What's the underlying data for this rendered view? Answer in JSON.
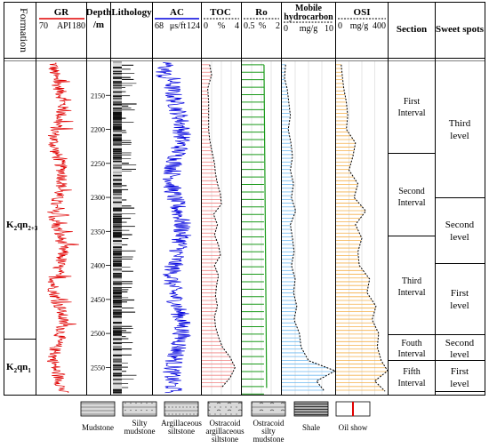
{
  "headers": {
    "formation": "Formation",
    "gr": {
      "title": "GR",
      "min": "70",
      "unit": "API",
      "max": "180",
      "color": "#e00000"
    },
    "depth": {
      "title": "Depth",
      "unit": "/m"
    },
    "lithology": "Lithology",
    "ac": {
      "title": "AC",
      "min": "68",
      "unit": "μs/ft",
      "max": "124",
      "color": "#0000dd"
    },
    "toc": {
      "title": "TOC",
      "min": "0",
      "unit": "%",
      "max": "4"
    },
    "ro": {
      "title": "Ro",
      "min": "0.5",
      "unit": "%",
      "max": "2"
    },
    "mobile": {
      "title1": "Mobile",
      "title2": "hydrocarbon",
      "min": "0",
      "unit": "mg/g",
      "max": "10"
    },
    "osi": {
      "title": "OSI",
      "min": "0",
      "unit": "mg/g",
      "max": "400"
    },
    "section": "Section",
    "sweet": "Sweet spots"
  },
  "depth_ticks": [
    "2150",
    "2200",
    "2250",
    "2300",
    "2350",
    "2400",
    "2450",
    "2500",
    "2550"
  ],
  "formations": {
    "upper": {
      "label": "K",
      "sub": "2",
      "rest": "qn",
      "sub2": "2+3"
    },
    "lower": {
      "label": "K",
      "sub": "2",
      "rest": "qn",
      "sub2": "1"
    }
  },
  "sections": [
    {
      "line1": "First",
      "line2": "Interval"
    },
    {
      "line1": "Second",
      "line2": "Interval"
    },
    {
      "line1": "Third",
      "line2": "Interval"
    },
    {
      "line1": "Fouth",
      "line2": "Interval"
    },
    {
      "line1": "Fifth",
      "line2": "Interval"
    }
  ],
  "sweet_spots": [
    {
      "line1": "Third",
      "line2": "level"
    },
    {
      "line1": "Second",
      "line2": "level"
    },
    {
      "line1": "First",
      "line2": "level"
    },
    {
      "line1": "Second",
      "line2": "level"
    },
    {
      "line1": "First",
      "line2": "level"
    }
  ],
  "legend": [
    {
      "label1": "Mudstone",
      "label2": "",
      "label3": "",
      "pattern": "mudstone"
    },
    {
      "label1": "Silty",
      "label2": "mudstone",
      "label3": "",
      "pattern": "silty"
    },
    {
      "label1": "Argillaceous",
      "label2": "siltstone",
      "label3": "",
      "pattern": "argsilt"
    },
    {
      "label1": "Ostracoid",
      "label2": "argillaceous",
      "label3": "siltstone",
      "pattern": "ostarg"
    },
    {
      "label1": "Ostracoid",
      "label2": "silty",
      "label3": "mudstone",
      "pattern": "ostsilty"
    },
    {
      "label1": "Shale",
      "label2": "",
      "label3": "",
      "pattern": "shale"
    },
    {
      "label1": "Oil show",
      "label2": "",
      "label3": "",
      "pattern": "oil"
    }
  ],
  "chart_data": {
    "type": "line",
    "depth_range": [
      2100,
      2590
    ],
    "toc": {
      "depth": [
        2105,
        2120,
        2140,
        2160,
        2180,
        2200,
        2215,
        2230,
        2250,
        2265,
        2280,
        2295,
        2310,
        2325,
        2340,
        2355,
        2370,
        2385,
        2400,
        2415,
        2430,
        2445,
        2460,
        2475,
        2490,
        2505,
        2520,
        2535,
        2550,
        2565,
        2580
      ],
      "values": [
        0.8,
        1.0,
        0.6,
        0.7,
        0.7,
        0.7,
        0.8,
        1.0,
        1.3,
        1.4,
        1.6,
        1.9,
        2.0,
        1.2,
        1.6,
        1.3,
        1.7,
        1.9,
        1.3,
        1.7,
        1.5,
        1.4,
        1.6,
        1.3,
        1.4,
        1.7,
        2.1,
        2.9,
        3.4,
        2.9,
        2.0
      ]
    },
    "ro": {
      "depth": [
        2105,
        2580
      ],
      "values": [
        1.35,
        1.45
      ]
    },
    "mobile": {
      "depth": [
        2105,
        2125,
        2140,
        2160,
        2180,
        2200,
        2220,
        2240,
        2260,
        2280,
        2300,
        2320,
        2340,
        2360,
        2380,
        2400,
        2420,
        2440,
        2460,
        2480,
        2500,
        2520,
        2540,
        2555,
        2570,
        2585
      ],
      "values": [
        0.7,
        0.5,
        1.0,
        1.3,
        1.6,
        1.2,
        1.7,
        2.0,
        1.6,
        2.2,
        1.8,
        2.6,
        1.6,
        2.0,
        2.3,
        1.8,
        2.5,
        2.2,
        2.8,
        2.3,
        3.3,
        3.6,
        5.0,
        10,
        6.5,
        8.0
      ]
    },
    "osi": {
      "depth": [
        2105,
        2125,
        2140,
        2160,
        2180,
        2200,
        2220,
        2240,
        2260,
        2280,
        2300,
        2320,
        2340,
        2360,
        2380,
        2400,
        2420,
        2440,
        2460,
        2480,
        2500,
        2520,
        2540,
        2555,
        2570,
        2585
      ],
      "values": [
        40,
        50,
        60,
        80,
        90,
        80,
        150,
        130,
        100,
        170,
        140,
        230,
        150,
        200,
        170,
        180,
        260,
        240,
        310,
        280,
        330,
        320,
        350,
        400,
        300,
        380
      ]
    }
  }
}
